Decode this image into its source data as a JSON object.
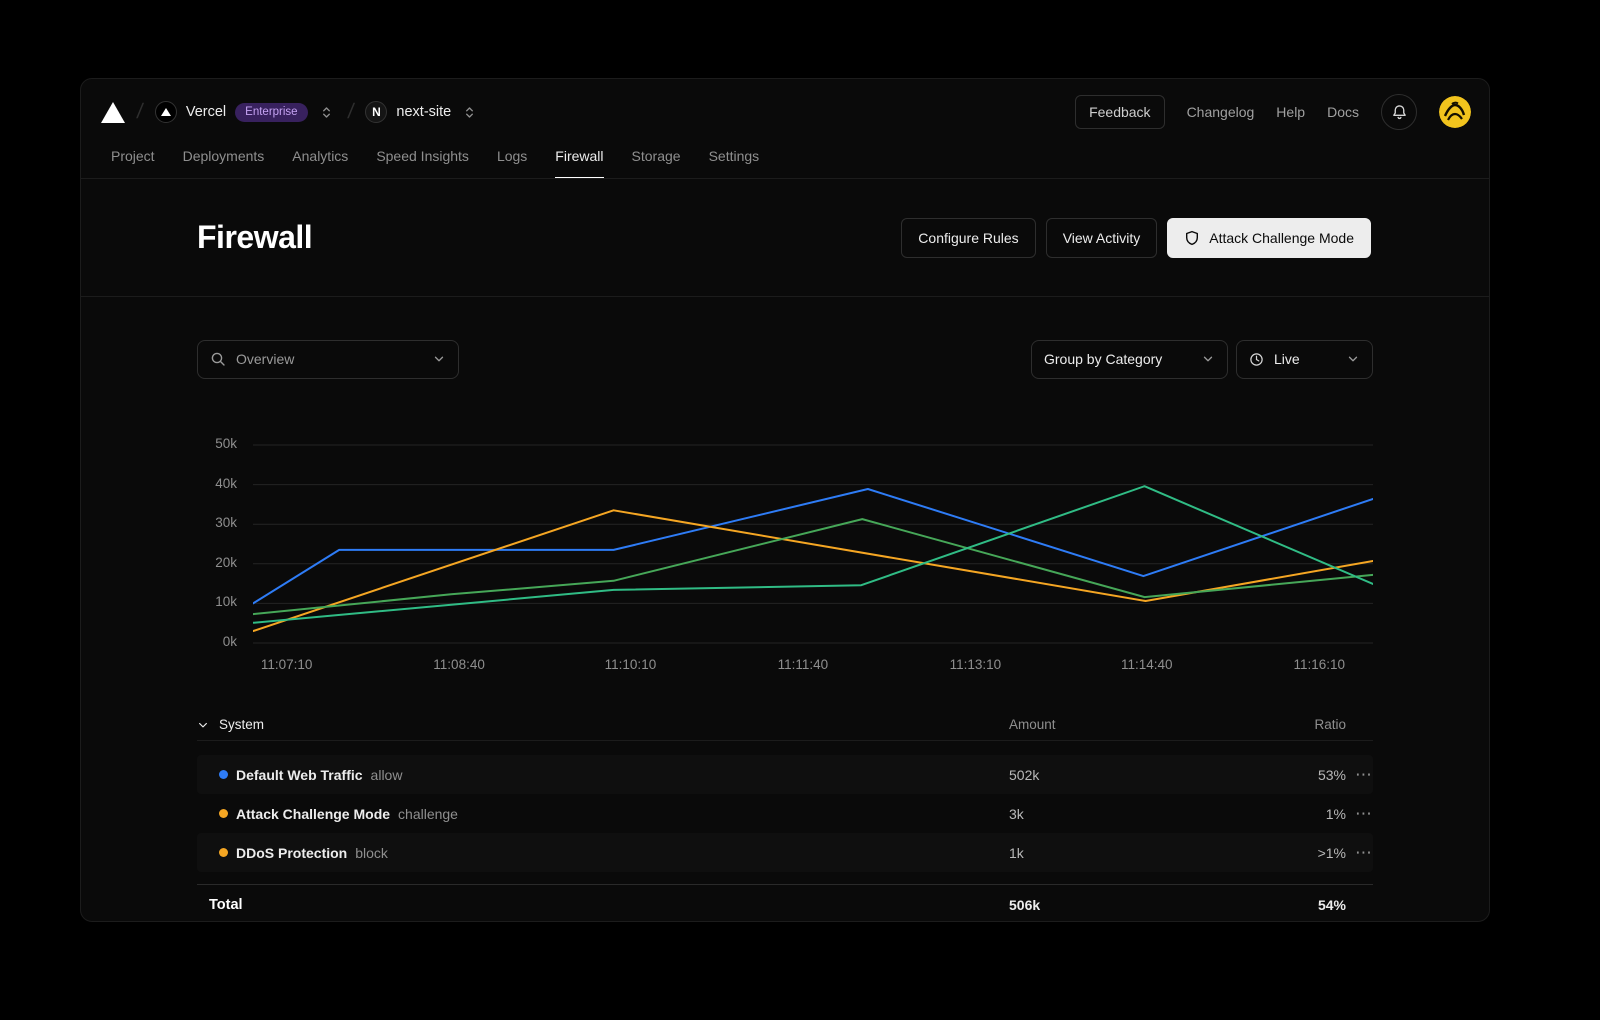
{
  "icons": {
    "slash": "/",
    "more_menu": "⋯"
  },
  "header": {
    "team": {
      "name": "Vercel",
      "badge": "Enterprise"
    },
    "project": {
      "name": "next-site",
      "avatar_letter": "N"
    },
    "links": {
      "feedback": "Feedback",
      "changelog": "Changelog",
      "help": "Help",
      "docs": "Docs"
    }
  },
  "nav": {
    "tabs": [
      {
        "label": "Project",
        "active": false
      },
      {
        "label": "Deployments",
        "active": false
      },
      {
        "label": "Analytics",
        "active": false
      },
      {
        "label": "Speed Insights",
        "active": false
      },
      {
        "label": "Logs",
        "active": false
      },
      {
        "label": "Firewall",
        "active": true
      },
      {
        "label": "Storage",
        "active": false
      },
      {
        "label": "Settings",
        "active": false
      }
    ]
  },
  "hero": {
    "title": "Firewall",
    "buttons": {
      "configure": "Configure Rules",
      "activity": "View Activity",
      "attack_mode": "Attack Challenge Mode"
    }
  },
  "filters": {
    "overview": "Overview",
    "group_by": "Group by Category",
    "range": "Live"
  },
  "chart_data": {
    "type": "line",
    "title": "",
    "legend": "none",
    "grid": "horizontal",
    "y_axis": {
      "ylim": [
        0,
        50
      ],
      "unit": "k requests",
      "ticks": [
        0,
        10,
        20,
        30,
        40,
        50
      ],
      "labels": [
        "0k",
        "10k",
        "20k",
        "30k",
        "40k",
        "50k"
      ]
    },
    "x_axis": {
      "note": "x positions are fractions of plot width; ~90s between labeled ticks",
      "ticks": [
        {
          "label": "11:07:10",
          "pos": 0.03
        },
        {
          "label": "11:08:40",
          "pos": 0.184
        },
        {
          "label": "11:10:10",
          "pos": 0.337
        },
        {
          "label": "11:11:40",
          "pos": 0.491
        },
        {
          "label": "11:13:10",
          "pos": 0.645
        },
        {
          "label": "11:14:40",
          "pos": 0.798
        },
        {
          "label": "11:16:10",
          "pos": 0.952
        }
      ]
    },
    "series": [
      {
        "name": "series-blue",
        "color": "#2e7cf6",
        "points": [
          [
            0,
            10
          ],
          [
            0.077,
            23.5
          ],
          [
            0.322,
            23.5
          ],
          [
            0.549,
            38.9
          ],
          [
            0.795,
            16.9
          ],
          [
            1,
            36.4
          ]
        ]
      },
      {
        "name": "series-amber",
        "color": "#f5a623",
        "points": [
          [
            0,
            3
          ],
          [
            0.322,
            33.5
          ],
          [
            0.797,
            10.6
          ],
          [
            1,
            20.7
          ]
        ]
      },
      {
        "name": "series-green",
        "color": "#46a758",
        "points": [
          [
            0,
            7.3
          ],
          [
            0.177,
            12.3
          ],
          [
            0.322,
            15.7
          ],
          [
            0.544,
            31.3
          ],
          [
            0.796,
            11.6
          ],
          [
            1,
            17.2
          ]
        ]
      },
      {
        "name": "series-teal",
        "color": "#30bc85",
        "points": [
          [
            0,
            5.1
          ],
          [
            0.322,
            13.4
          ],
          [
            0.543,
            14.6
          ],
          [
            0.796,
            39.6
          ],
          [
            1,
            14.9
          ]
        ]
      }
    ]
  },
  "table": {
    "group_label": "System",
    "columns": {
      "amount": "Amount",
      "ratio": "Ratio"
    },
    "rows": [
      {
        "name": "Default Web Traffic",
        "action": "allow",
        "amount": "502k",
        "ratio": "53%",
        "dot_color": "#2e7cf6"
      },
      {
        "name": "Attack Challenge Mode",
        "action": "challenge",
        "amount": "3k",
        "ratio": "1%",
        "dot_color": "#f5a623"
      },
      {
        "name": "DDoS Protection",
        "action": "block",
        "amount": "1k",
        "ratio": ">1%",
        "dot_color": "#f5a623"
      }
    ],
    "total": {
      "label": "Total",
      "amount": "506k",
      "ratio": "54%"
    }
  }
}
